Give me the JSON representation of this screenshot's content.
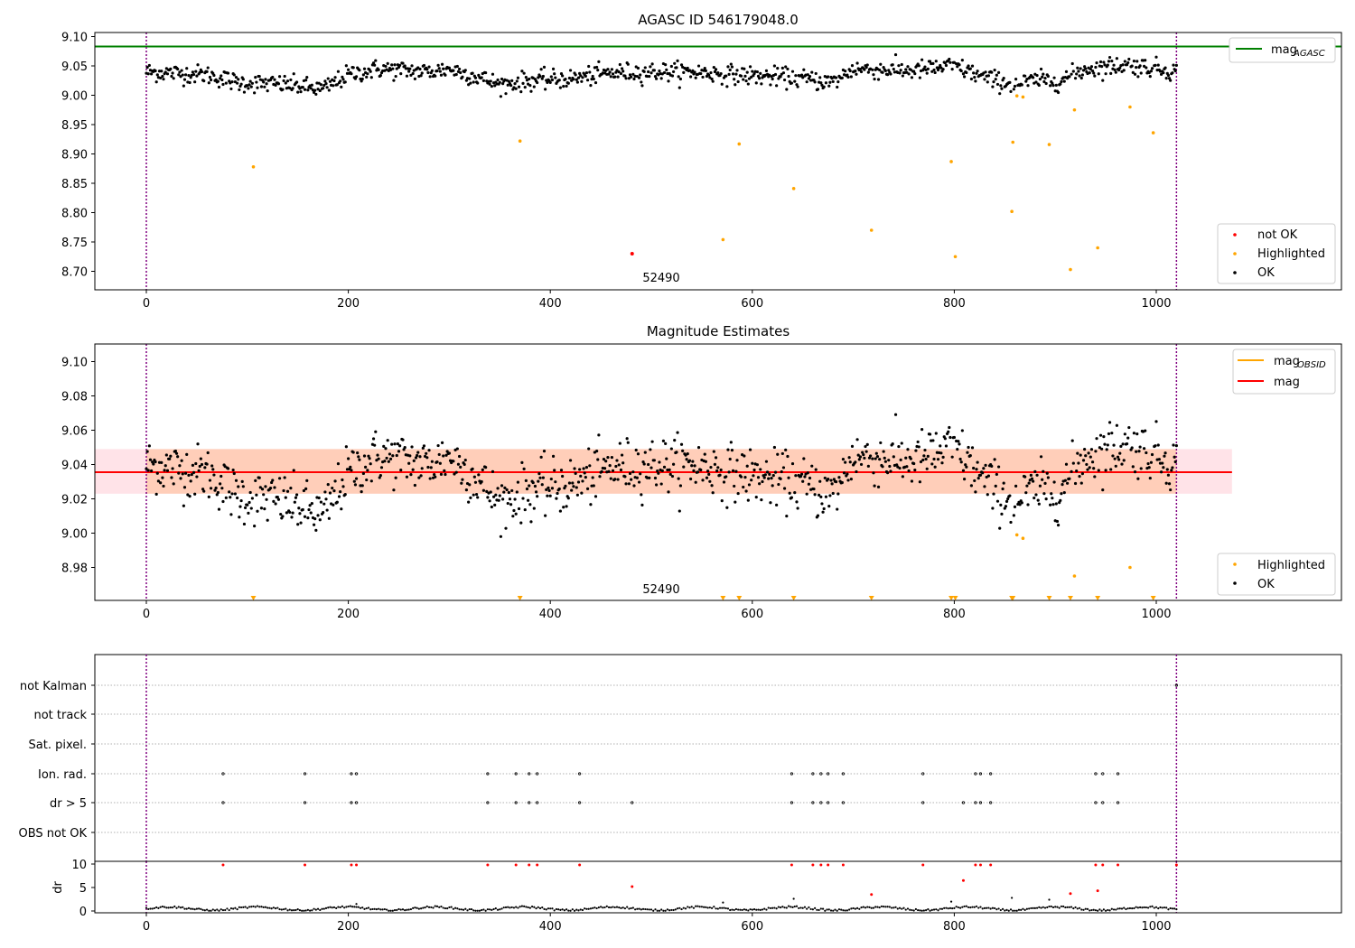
{
  "chart_data": [
    {
      "type": "scatter",
      "title": "AGASC ID 546179048.0",
      "xlabel": "",
      "ylabel": "",
      "xlim": [
        -50,
        1180
      ],
      "ylim": [
        8.68,
        9.105
      ],
      "x_ticks": [
        0,
        200,
        400,
        600,
        800,
        1000
      ],
      "y_ticks": [
        8.7,
        8.75,
        8.8,
        8.85,
        8.9,
        8.95,
        9.0,
        9.05,
        9.1
      ],
      "grid": false,
      "mag_agasc": 9.083,
      "obs_boundaries": [
        0,
        1020
      ],
      "obsid_label": "52490",
      "series": [
        {
          "name": "not OK",
          "color": "#ff0000",
          "x": [
            481
          ],
          "y": [
            8.73
          ]
        },
        {
          "name": "Highlighted",
          "color": "#ffa500",
          "x": [
            106,
            370,
            571,
            587,
            641,
            718,
            797,
            801,
            857,
            858,
            862,
            868,
            894,
            915,
            919,
            942,
            974,
            997
          ],
          "y": [
            8.878,
            8.922,
            8.754,
            8.917,
            8.841,
            8.77,
            8.887,
            8.725,
            8.802,
            8.92,
            8.999,
            8.997,
            8.916,
            8.703,
            8.975,
            8.74,
            8.98,
            8.936
          ]
        },
        {
          "name": "OK",
          "color": "#000000",
          "generated": true
        }
      ],
      "legend": [
        {
          "label": "mag",
          "sub": "AGASC",
          "style": "line",
          "color": "#008000"
        }
      ],
      "legend_points": [
        {
          "label": "not OK",
          "color": "#ff0000"
        },
        {
          "label": "Highlighted",
          "color": "#ffa500"
        },
        {
          "label": "OK",
          "color": "#000000"
        }
      ]
    },
    {
      "type": "scatter",
      "title": "Magnitude Estimates",
      "xlabel": "",
      "ylabel": "",
      "xlim": [
        -50,
        1180
      ],
      "ylim": [
        8.96,
        9.1105
      ],
      "x_ticks": [
        0,
        200,
        400,
        600,
        800,
        1000
      ],
      "y_ticks": [
        8.98,
        9.0,
        9.02,
        9.04,
        9.06,
        9.08,
        9.1
      ],
      "grid": false,
      "mag_obsid": 9.0355,
      "mag": 9.0355,
      "band_mag": [
        9.023,
        9.049
      ],
      "band_obsid": [
        9.023,
        9.049
      ],
      "obsid_label": "52490",
      "series": [
        {
          "name": "Highlighted",
          "color": "#ffa500",
          "x": [
            862,
            868,
            919,
            974
          ],
          "y": [
            8.999,
            8.997,
            8.975,
            8.98
          ]
        },
        {
          "name": "OK",
          "color": "#000000",
          "generated": true
        }
      ],
      "out_of_range_markers_x": [
        106,
        370,
        571,
        587,
        641,
        718,
        797,
        801,
        857,
        858,
        894,
        915,
        942,
        997
      ],
      "legend": [
        {
          "label": "mag",
          "sub": "OBSID",
          "style": "line",
          "color": "#ffa500"
        },
        {
          "label": "mag",
          "sub": "",
          "style": "line",
          "color": "#ff0000"
        }
      ],
      "legend_points": [
        {
          "label": "Highlighted",
          "color": "#ffa500"
        },
        {
          "label": "OK",
          "color": "#000000"
        }
      ]
    },
    {
      "type": "scatter",
      "title": "",
      "xlabel": "",
      "ylabel": "",
      "xlim": [
        -50,
        1180
      ],
      "categories": [
        "not Kalman",
        "not track",
        "Sat. pixel.",
        "Ion. rad.",
        "dr > 5",
        "OBS not OK"
      ],
      "flag_ion_rad_x": [
        76,
        157,
        203,
        208,
        338,
        366,
        379,
        387,
        429,
        639,
        660,
        668,
        675,
        690,
        769,
        821,
        826,
        836,
        940,
        947,
        962
      ],
      "flag_dr5_x": [
        76,
        157,
        203,
        208,
        338,
        366,
        379,
        387,
        429,
        481,
        639,
        660,
        668,
        675,
        690,
        769,
        809,
        821,
        826,
        836,
        940,
        947,
        962
      ],
      "flag_not_kalman_x": [
        1020
      ],
      "grid": true
    },
    {
      "type": "scatter",
      "title": "",
      "xlabel": "",
      "ylabel": "dr",
      "xlim": [
        -50,
        1180
      ],
      "ylim": [
        -0.5,
        10.5
      ],
      "y_ticks": [
        0,
        5,
        10
      ],
      "y_tick_labels": [
        "0",
        "5",
        "10"
      ],
      "x_ticks": [
        0,
        200,
        400,
        600,
        800,
        1000
      ],
      "red_points": [
        [
          76,
          9.8
        ],
        [
          157,
          9.8
        ],
        [
          203,
          9.8
        ],
        [
          208,
          9.8
        ],
        [
          338,
          9.8
        ],
        [
          366,
          9.8
        ],
        [
          379,
          9.8
        ],
        [
          387,
          9.8
        ],
        [
          429,
          9.8
        ],
        [
          639,
          9.8
        ],
        [
          660,
          9.8
        ],
        [
          668,
          9.8
        ],
        [
          675,
          9.8
        ],
        [
          690,
          9.8
        ],
        [
          769,
          9.8
        ],
        [
          821,
          9.8
        ],
        [
          826,
          9.8
        ],
        [
          836,
          9.8
        ],
        [
          940,
          9.8
        ],
        [
          947,
          9.8
        ],
        [
          962,
          9.8
        ],
        [
          1020,
          9.8
        ],
        [
          481,
          5.2
        ],
        [
          718,
          3.5
        ],
        [
          809,
          6.5
        ],
        [
          915,
          3.7
        ],
        [
          942,
          4.3
        ]
      ],
      "black_outliers": [
        [
          208,
          1.5
        ],
        [
          571,
          1.8
        ],
        [
          641,
          2.6
        ],
        [
          797,
          2.0
        ],
        [
          857,
          2.8
        ],
        [
          894,
          2.4
        ]
      ],
      "black_points": {
        "generated": true
      }
    }
  ]
}
